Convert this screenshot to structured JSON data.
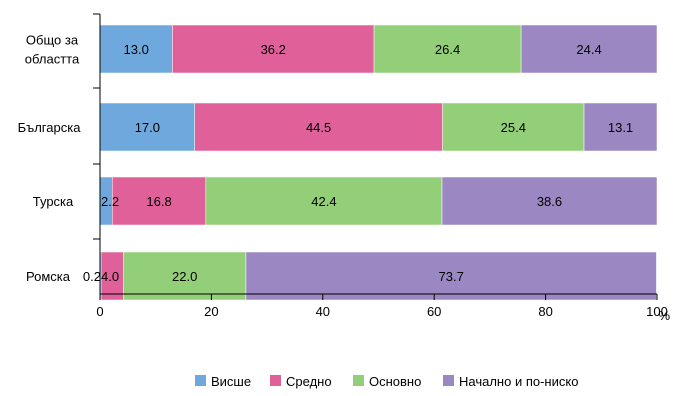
{
  "chart_data": {
    "type": "bar",
    "orientation": "horizontal",
    "stacked": true,
    "categories": [
      "Общо за\nобластта",
      "Българска",
      "Турска",
      "Ромска"
    ],
    "series": [
      {
        "name": "Висше",
        "color": "#6fa8dc",
        "values": [
          13.0,
          17.0,
          2.2,
          0.2
        ]
      },
      {
        "name": "Средно",
        "color": "#e0609a",
        "values": [
          36.2,
          44.5,
          16.8,
          4.0
        ]
      },
      {
        "name": "Основно",
        "color": "#93cf79",
        "values": [
          26.4,
          25.4,
          42.4,
          22.0
        ]
      },
      {
        "name": "Начално и по-ниско",
        "color": "#9b88c2",
        "values": [
          24.4,
          13.1,
          38.6,
          73.7
        ]
      }
    ],
    "data_labels": [
      [
        "13.0",
        "36.2",
        "26.4",
        "24.4"
      ],
      [
        "17.0",
        "44.5",
        "25.4",
        "13.1"
      ],
      [
        "2.2",
        "16.8",
        "42.4",
        "38.6"
      ],
      [
        "0.2",
        "4.0",
        "22.0",
        "73.7"
      ]
    ],
    "xlim": [
      0,
      100
    ],
    "xticks": [
      "0",
      "20",
      "40",
      "60",
      "80",
      "100"
    ],
    "xunit": "%",
    "grid": false,
    "legend_position": "bottom"
  }
}
